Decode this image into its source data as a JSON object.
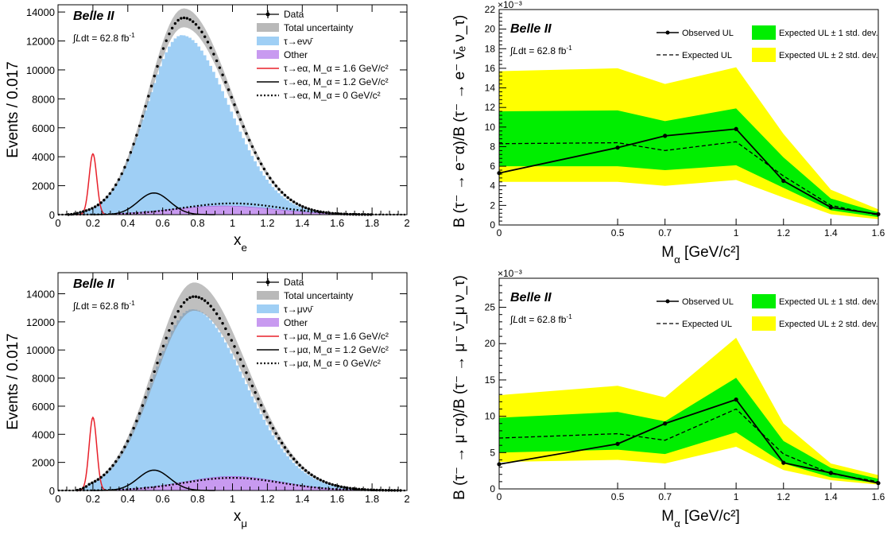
{
  "figure": {
    "chart_data": [
      {
        "type": "histogram",
        "experiment": "Belle II",
        "luminosity": "Ldt = 62.8 fb",
        "luminosity_unit_sup": "-1",
        "xlabel": "x",
        "xlabel_sub": "e",
        "ylabel": "Events / 0.017",
        "xlim": [
          0,
          2
        ],
        "ylim": [
          0,
          14500
        ],
        "x_ticks": [
          0,
          0.2,
          0.4,
          0.6,
          0.8,
          1,
          1.2,
          1.4,
          1.6,
          1.8,
          2
        ],
        "x_tick_labels": [
          "0",
          "0.2",
          "0.4",
          "0.6",
          "0.8",
          "1",
          "1.2",
          "1.4",
          "1.6",
          "1.8",
          "2"
        ],
        "y_ticks": [
          0,
          2000,
          4000,
          6000,
          8000,
          10000,
          12000,
          14000
        ],
        "y_tick_labels": [
          "0",
          "2000",
          "4000",
          "6000",
          "8000",
          "10000",
          "12000",
          "14000"
        ],
        "legend": [
          "Data",
          "Total uncertainty",
          "τ→eνν̄",
          "Other",
          "τ→eα, M_α = 1.6 GeV/c²",
          "τ→eα, M_α = 1.2 GeV/c²",
          "τ→eα, M_α = 0 GeV/c²"
        ],
        "legend_position": "top-right",
        "background_shape": {
          "peak_x": 0.71,
          "peak": 12400,
          "width_left": 0.2,
          "width_right": 0.27,
          "start": 0.05
        },
        "data_shape": {
          "peak_x": 0.72,
          "peak": 13600,
          "width_left": 0.2,
          "width_right": 0.27
        },
        "uncertainty_fraction": 0.045,
        "other_shape": {
          "peak_x": 0.95,
          "peak": 600,
          "width": 0.3
        },
        "signal_16": {
          "mean": 0.2,
          "sigma": 0.022,
          "peak": 4200
        },
        "signal_12": {
          "mean": 0.55,
          "sigma": 0.09,
          "peak": 1500
        },
        "signal_0": {
          "mean": 1.0,
          "sigma": 0.28,
          "peak": 780
        }
      },
      {
        "type": "area",
        "experiment": "Belle II",
        "luminosity": "Ldt = 62.8 fb",
        "luminosity_unit_sup": "-1",
        "xlabel": "M",
        "xlabel_sub": "α",
        "xlabel_suffix": " [GeV/c²]",
        "ylabel": "B (τ⁻ → e⁻α)/B (τ⁻ → e⁻ ν̄ₑ ν_τ)",
        "scale_label": "×10⁻³",
        "xlim": [
          0,
          1.6
        ],
        "ylim": [
          0,
          22
        ],
        "x_ticks": [
          0,
          0.5,
          0.7,
          1,
          1.2,
          1.4,
          1.6
        ],
        "x_tick_labels": [
          "0",
          "0.5",
          "0.7",
          "1",
          "1.2",
          "1.4",
          "1.6"
        ],
        "y_ticks": [
          0,
          2,
          4,
          6,
          8,
          10,
          12,
          14,
          16,
          18,
          20,
          22
        ],
        "y_tick_labels": [
          "0",
          "2",
          "4",
          "6",
          "8",
          "10",
          "12",
          "14",
          "16",
          "18",
          "20",
          "22"
        ],
        "x": [
          0,
          0.5,
          0.7,
          1.0,
          1.2,
          1.4,
          1.6
        ],
        "series": [
          {
            "name": "Observed UL",
            "values": [
              5.3,
              7.9,
              9.1,
              9.8,
              4.5,
              1.8,
              1.1
            ]
          },
          {
            "name": "Expected UL",
            "values": [
              8.3,
              8.4,
              7.6,
              8.5,
              5.0,
              2.0,
              1.0
            ]
          },
          {
            "name": "Expected UL ± 1 std. dev.",
            "low": [
              6.0,
              6.0,
              5.6,
              6.1,
              3.8,
              1.5,
              0.8
            ],
            "high": [
              11.6,
              11.7,
              10.6,
              11.9,
              6.9,
              2.7,
              1.3
            ]
          },
          {
            "name": "Expected UL ± 2 std. dev.",
            "low": [
              4.4,
              4.4,
              4.0,
              4.6,
              2.8,
              1.1,
              0.6
            ],
            "high": [
              15.7,
              16.0,
              14.4,
              16.1,
              9.3,
              3.6,
              1.6
            ]
          }
        ],
        "legend_position": "top"
      },
      {
        "type": "histogram",
        "experiment": "Belle II",
        "luminosity": "Ldt = 62.8 fb",
        "luminosity_unit_sup": "-1",
        "xlabel": "x",
        "xlabel_sub": "μ",
        "ylabel": "Events / 0.017",
        "xlim": [
          0,
          2
        ],
        "ylim": [
          0,
          15500
        ],
        "x_ticks": [
          0,
          0.2,
          0.4,
          0.6,
          0.8,
          1,
          1.2,
          1.4,
          1.6,
          1.8,
          2
        ],
        "x_tick_labels": [
          "0",
          "0.2",
          "0.4",
          "0.6",
          "0.8",
          "1",
          "1.2",
          "1.4",
          "1.6",
          "1.8",
          "2"
        ],
        "y_ticks": [
          0,
          2000,
          4000,
          6000,
          8000,
          10000,
          12000,
          14000
        ],
        "y_tick_labels": [
          "0",
          "2000",
          "4000",
          "6000",
          "8000",
          "10000",
          "12000",
          "14000"
        ],
        "legend": [
          "Data",
          "Total uncertainty",
          "τ→μνν̄",
          "Other",
          "τ→μα, M_α = 1.6 GeV/c²",
          "τ→μα, M_α = 1.2 GeV/c²",
          "τ→μα, M_α = 0 GeV/c²"
        ],
        "legend_position": "top-right",
        "background_shape": {
          "peak_x": 0.77,
          "peak": 12900,
          "width_left": 0.23,
          "width_right": 0.3,
          "start": 0.1
        },
        "data_shape": {
          "peak_x": 0.78,
          "peak": 13800,
          "width_left": 0.23,
          "width_right": 0.3
        },
        "uncertainty_fraction": 0.07,
        "other_shape": {
          "peak_x": 1.0,
          "peak": 1000,
          "width": 0.28
        },
        "signal_16": {
          "mean": 0.2,
          "sigma": 0.022,
          "peak": 5200
        },
        "signal_12": {
          "mean": 0.55,
          "sigma": 0.09,
          "peak": 1450
        },
        "signal_0": {
          "mean": 1.0,
          "sigma": 0.28,
          "peak": 900
        }
      },
      {
        "type": "area",
        "experiment": "Belle II",
        "luminosity": "Ldt = 62.8 fb",
        "luminosity_unit_sup": "-1",
        "xlabel": "M",
        "xlabel_sub": "α",
        "xlabel_suffix": " [GeV/c²]",
        "ylabel": "B (τ⁻ → μ⁻α)/B (τ⁻ → μ⁻ ν̄_μ ν_τ)",
        "scale_label": "×10⁻³",
        "xlim": [
          0,
          1.6
        ],
        "ylim": [
          0,
          29
        ],
        "x_ticks": [
          0,
          0.5,
          0.7,
          1,
          1.2,
          1.4,
          1.6
        ],
        "x_tick_labels": [
          "0",
          "0.5",
          "0.7",
          "1",
          "1.2",
          "1.4",
          "1.6"
        ],
        "y_ticks": [
          0,
          5,
          10,
          15,
          20,
          25
        ],
        "y_tick_labels": [
          "0",
          "5",
          "10",
          "15",
          "20",
          "25"
        ],
        "x": [
          0,
          0.5,
          0.7,
          1.0,
          1.2,
          1.4,
          1.6
        ],
        "series": [
          {
            "name": "Observed UL",
            "values": [
              3.4,
              6.2,
              9.0,
              12.3,
              3.6,
              2.2,
              0.8
            ]
          },
          {
            "name": "Expected UL",
            "values": [
              7.0,
              7.6,
              6.7,
              11.0,
              4.8,
              2.1,
              1.0
            ]
          },
          {
            "name": "Expected UL ± 1 std. dev.",
            "low": [
              5.0,
              5.4,
              4.8,
              7.8,
              3.5,
              1.6,
              0.8
            ],
            "high": [
              9.8,
              10.6,
              9.3,
              15.3,
              6.6,
              2.9,
              1.4
            ]
          },
          {
            "name": "Expected UL ± 2 std. dev.",
            "low": [
              3.7,
              4.0,
              3.5,
              5.8,
              2.6,
              1.2,
              0.6
            ],
            "high": [
              12.9,
              14.2,
              12.6,
              20.8,
              9.0,
              3.5,
              1.9
            ]
          }
        ],
        "legend_position": "top"
      }
    ]
  }
}
